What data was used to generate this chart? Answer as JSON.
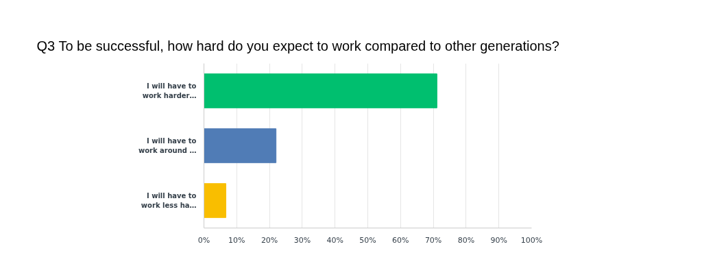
{
  "chart_data": {
    "type": "bar",
    "orientation": "horizontal",
    "title": "Q3 To be successful, how hard do you expect to work compared to other generations?",
    "categories": [
      "I will have to work harder…",
      "I will have to work around …",
      "I will have to work less ha…"
    ],
    "values": [
      71.1,
      22.0,
      6.7
    ],
    "colors": [
      "#00bf6f",
      "#507cb6",
      "#f9be00"
    ],
    "xlim": [
      0,
      100
    ],
    "xticks": [
      {
        "value": 0,
        "label": "0%"
      },
      {
        "value": 10,
        "label": "10%"
      },
      {
        "value": 20,
        "label": "20%"
      },
      {
        "value": 30,
        "label": "30%"
      },
      {
        "value": 40,
        "label": "40%"
      },
      {
        "value": 50,
        "label": "50%"
      },
      {
        "value": 60,
        "label": "60%"
      },
      {
        "value": 70,
        "label": "70%"
      },
      {
        "value": 80,
        "label": "80%"
      },
      {
        "value": 90,
        "label": "90%"
      },
      {
        "value": 100,
        "label": "100%"
      }
    ],
    "grid": "x"
  }
}
